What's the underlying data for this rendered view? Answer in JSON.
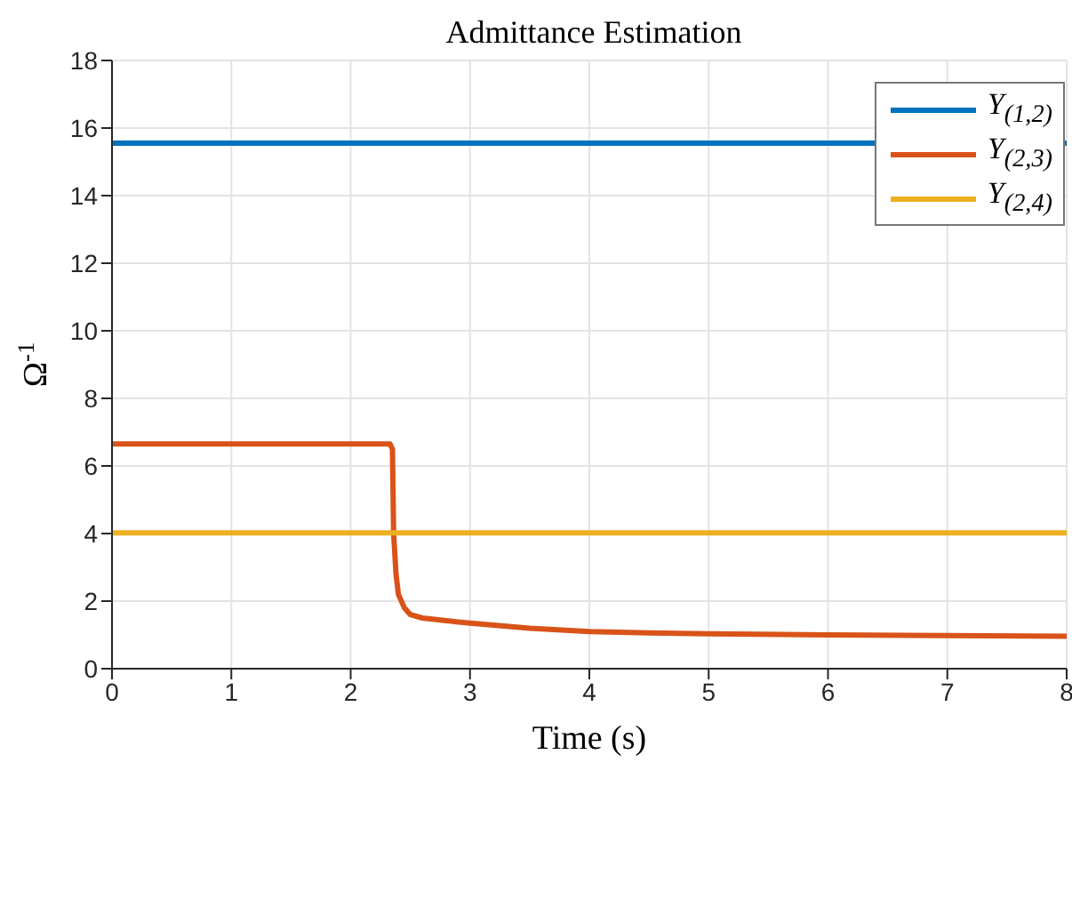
{
  "chart_data": {
    "type": "line",
    "title": "Admittance Estimation",
    "xlabel": "Time (s)",
    "ylabel": "Ω$^{-1}$",
    "xlim": [
      0,
      8
    ],
    "xticks": [
      0,
      1,
      2,
      3,
      4,
      5,
      6,
      7,
      8
    ],
    "ylim": [
      0,
      18
    ],
    "yticks": [
      0,
      2,
      4,
      6,
      8,
      10,
      12,
      14,
      16,
      18
    ],
    "grid": true,
    "legend": "top right",
    "marker": "none",
    "line_style": "solid",
    "series": [
      {
        "name": "Y$_{(1,2)}$",
        "color": "#0072bd",
        "x": [
          0,
          8
        ],
        "values": [
          15.55,
          15.55
        ]
      },
      {
        "name": "Y$_{(2,3)}$",
        "color": "#d95319",
        "x": [
          0,
          2.33,
          2.35,
          2.36,
          2.38,
          2.4,
          2.45,
          2.5,
          2.6,
          2.8,
          3,
          3.5,
          4,
          4.5,
          5,
          6,
          7,
          8
        ],
        "values": [
          6.65,
          6.65,
          6.5,
          4,
          2.8,
          2.2,
          1.8,
          1.6,
          1.5,
          1.42,
          1.35,
          1.2,
          1.1,
          1.06,
          1.03,
          1.0,
          0.98,
          0.96
        ]
      },
      {
        "name": "Y$_{(2,4)}$",
        "color": "#edb120",
        "x": [
          0,
          8
        ],
        "values": [
          4.02,
          4.02
        ]
      }
    ]
  }
}
